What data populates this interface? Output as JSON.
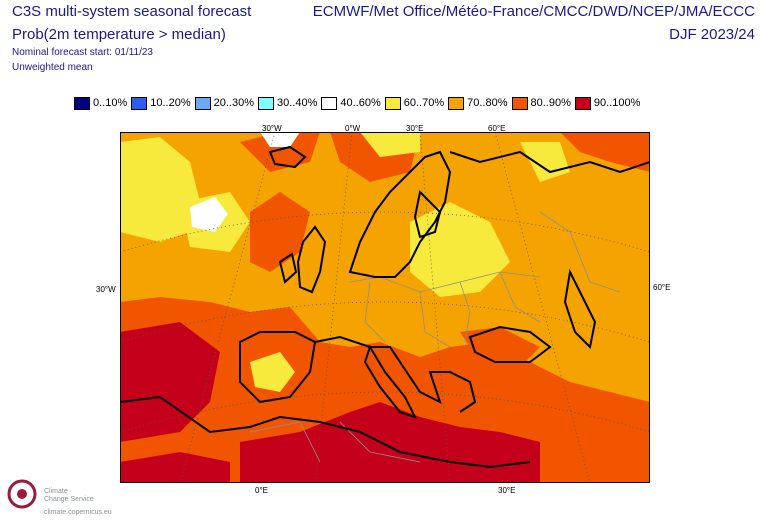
{
  "header": {
    "title": "C3S multi-system seasonal forecast",
    "subtitle": "Prob(2m temperature > median)",
    "nominal_start": "Nominal forecast start: 01/11/23",
    "weighting": "Unweighted mean",
    "centres": "ECMWF/Met Office/Météo-France/CMCC/DWD/NCEP/JMA/ECCC",
    "season": "DJF 2023/24"
  },
  "legend": [
    {
      "label": "0..10%",
      "color": "#000080"
    },
    {
      "label": "10..20%",
      "color": "#2e5cf0"
    },
    {
      "label": "20..30%",
      "color": "#6aa8f8"
    },
    {
      "label": "30..40%",
      "color": "#80ffff"
    },
    {
      "label": "40..60%",
      "color": "#ffffff"
    },
    {
      "label": "60..70%",
      "color": "#f7ea3c"
    },
    {
      "label": "70..80%",
      "color": "#f5a300"
    },
    {
      "label": "80..90%",
      "color": "#f25500"
    },
    {
      "label": "90..100%",
      "color": "#c4001a"
    }
  ],
  "axis_labels": {
    "top": [
      "30°W",
      "0°W",
      "30°E",
      "60°E"
    ],
    "left": "30°W",
    "right": "60°E",
    "bottom": [
      "0°E",
      "30°E"
    ]
  },
  "logo": {
    "line1": "Climate",
    "line2": "Change Service",
    "url": "climate.copernicus.eu"
  }
}
